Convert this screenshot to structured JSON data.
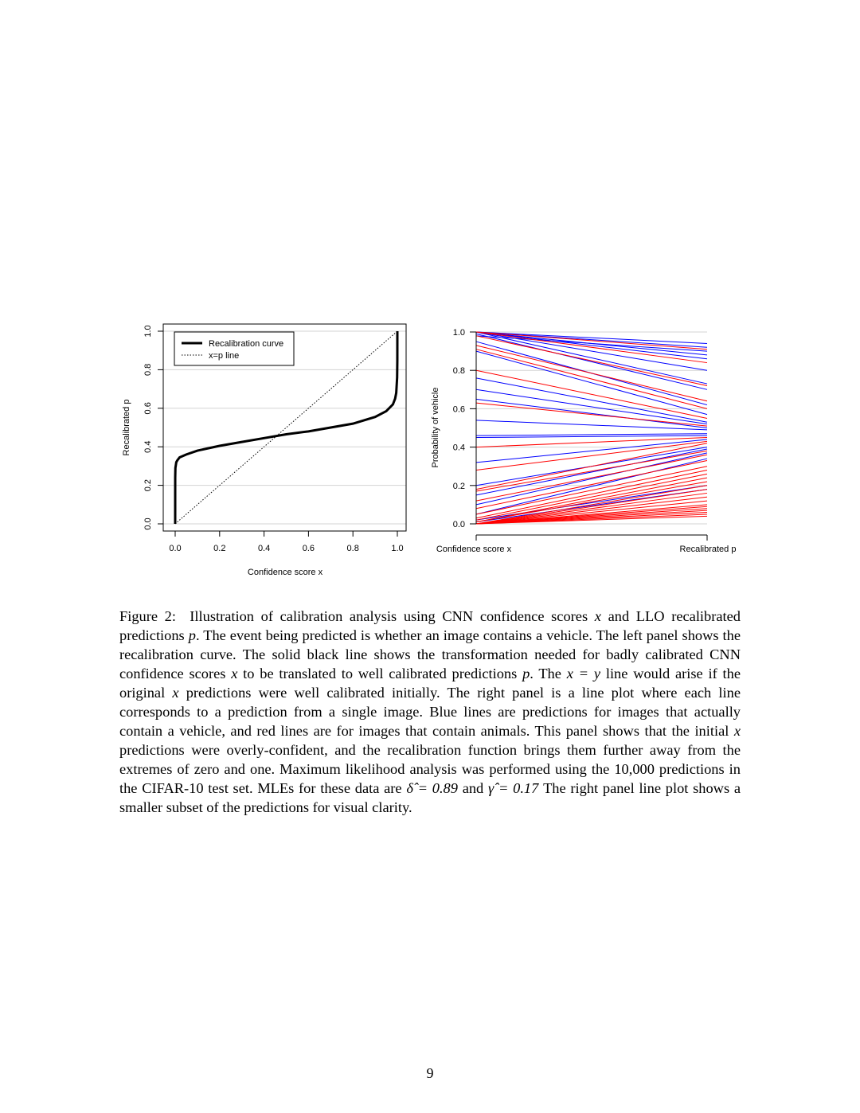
{
  "chart_data": [
    {
      "type": "line",
      "title": "",
      "xlabel": "Confidence score x",
      "ylabel": "Recalibrated p",
      "xlim": [
        0,
        1
      ],
      "ylim": [
        0,
        1
      ],
      "xticks": [
        "0.0",
        "0.2",
        "0.4",
        "0.6",
        "0.8",
        "1.0"
      ],
      "yticks": [
        "0.0",
        "0.2",
        "0.4",
        "0.6",
        "0.8",
        "1.0"
      ],
      "grid": "horizontal",
      "legend": {
        "placement": "top-left",
        "entries": [
          "Recalibration curve",
          "x=p line"
        ]
      },
      "series": [
        {
          "name": "Recalibration curve",
          "style": "solid-thick-black",
          "x": [
            0.0,
            0.0001,
            0.001,
            0.005,
            0.01,
            0.02,
            0.05,
            0.1,
            0.2,
            0.3,
            0.4,
            0.5,
            0.6,
            0.7,
            0.8,
            0.9,
            0.95,
            0.98,
            0.99,
            0.995,
            0.999,
            0.9999,
            1.0
          ],
          "y": [
            0.0,
            0.24,
            0.29,
            0.32,
            0.33,
            0.345,
            0.36,
            0.38,
            0.405,
            0.425,
            0.445,
            0.465,
            0.48,
            0.5,
            0.52,
            0.555,
            0.585,
            0.62,
            0.65,
            0.68,
            0.76,
            0.85,
            1.0
          ]
        },
        {
          "name": "x=p line",
          "style": "dotted-black",
          "x": [
            0,
            1
          ],
          "y": [
            0,
            1
          ]
        }
      ]
    },
    {
      "type": "line",
      "title": "",
      "xlabel": "",
      "ylabel": "Probability of vehicle",
      "x_categories": [
        "Confidence score x",
        "Recalibrated p"
      ],
      "ylim": [
        0,
        1
      ],
      "yticks": [
        "0.0",
        "0.2",
        "0.4",
        "0.6",
        "0.8",
        "1.0"
      ],
      "grid": "horizontal",
      "colors": {
        "vehicle": "#0000ff",
        "animal": "#ff0000"
      },
      "series": [
        {
          "name": "",
          "color": "#0000ff",
          "values": [
            1.0,
            0.94
          ]
        },
        {
          "name": "",
          "color": "#0000ff",
          "values": [
            1.0,
            0.92
          ]
        },
        {
          "name": "",
          "color": "#0000ff",
          "values": [
            1.0,
            0.88
          ]
        },
        {
          "name": "",
          "color": "#0000ff",
          "values": [
            1.0,
            0.86
          ]
        },
        {
          "name": "",
          "color": "#0000ff",
          "values": [
            1.0,
            0.8
          ]
        },
        {
          "name": "",
          "color": "#0000ff",
          "values": [
            1.0,
            0.73
          ]
        },
        {
          "name": "",
          "color": "#0000ff",
          "values": [
            0.99,
            0.7
          ]
        },
        {
          "name": "",
          "color": "#0000ff",
          "values": [
            0.98,
            0.9
          ]
        },
        {
          "name": "",
          "color": "#0000ff",
          "values": [
            0.95,
            0.62
          ]
        },
        {
          "name": "",
          "color": "#0000ff",
          "values": [
            0.9,
            0.57
          ]
        },
        {
          "name": "",
          "color": "#0000ff",
          "values": [
            0.76,
            0.53
          ]
        },
        {
          "name": "",
          "color": "#0000ff",
          "values": [
            0.7,
            0.52
          ]
        },
        {
          "name": "",
          "color": "#0000ff",
          "values": [
            0.65,
            0.5
          ]
        },
        {
          "name": "",
          "color": "#0000ff",
          "values": [
            0.54,
            0.49
          ]
        },
        {
          "name": "",
          "color": "#0000ff",
          "values": [
            0.46,
            0.47
          ]
        },
        {
          "name": "",
          "color": "#0000ff",
          "values": [
            0.45,
            0.46
          ]
        },
        {
          "name": "",
          "color": "#0000ff",
          "values": [
            0.32,
            0.44
          ]
        },
        {
          "name": "",
          "color": "#0000ff",
          "values": [
            0.2,
            0.4
          ]
        },
        {
          "name": "",
          "color": "#0000ff",
          "values": [
            0.15,
            0.39
          ]
        },
        {
          "name": "",
          "color": "#0000ff",
          "values": [
            0.1,
            0.37
          ]
        },
        {
          "name": "",
          "color": "#0000ff",
          "values": [
            0.05,
            0.34
          ]
        },
        {
          "name": "",
          "color": "#0000ff",
          "values": [
            0.02,
            0.2
          ]
        },
        {
          "name": "",
          "color": "#0000ff",
          "values": [
            0.01,
            0.18
          ]
        },
        {
          "name": "",
          "color": "#ff0000",
          "values": [
            1.0,
            0.91
          ]
        },
        {
          "name": "",
          "color": "#ff0000",
          "values": [
            1.0,
            0.84
          ]
        },
        {
          "name": "",
          "color": "#ff0000",
          "values": [
            0.98,
            0.72
          ]
        },
        {
          "name": "",
          "color": "#ff0000",
          "values": [
            0.93,
            0.64
          ]
        },
        {
          "name": "",
          "color": "#ff0000",
          "values": [
            0.91,
            0.6
          ]
        },
        {
          "name": "",
          "color": "#ff0000",
          "values": [
            0.8,
            0.55
          ]
        },
        {
          "name": "",
          "color": "#ff0000",
          "values": [
            0.63,
            0.51
          ]
        },
        {
          "name": "",
          "color": "#ff0000",
          "values": [
            0.4,
            0.45
          ]
        },
        {
          "name": "",
          "color": "#ff0000",
          "values": [
            0.28,
            0.43
          ]
        },
        {
          "name": "",
          "color": "#ff0000",
          "values": [
            0.18,
            0.42
          ]
        },
        {
          "name": "",
          "color": "#ff0000",
          "values": [
            0.17,
            0.38
          ]
        },
        {
          "name": "",
          "color": "#ff0000",
          "values": [
            0.12,
            0.36
          ]
        },
        {
          "name": "",
          "color": "#ff0000",
          "values": [
            0.08,
            0.33
          ]
        },
        {
          "name": "",
          "color": "#ff0000",
          "values": [
            0.05,
            0.3
          ]
        },
        {
          "name": "",
          "color": "#ff0000",
          "values": [
            0.03,
            0.28
          ]
        },
        {
          "name": "",
          "color": "#ff0000",
          "values": [
            0.02,
            0.26
          ]
        },
        {
          "name": "",
          "color": "#ff0000",
          "values": [
            0.01,
            0.24
          ]
        },
        {
          "name": "",
          "color": "#ff0000",
          "values": [
            0.01,
            0.22
          ]
        },
        {
          "name": "",
          "color": "#ff0000",
          "values": [
            0.0,
            0.2
          ]
        },
        {
          "name": "",
          "color": "#ff0000",
          "values": [
            0.0,
            0.18
          ]
        },
        {
          "name": "",
          "color": "#ff0000",
          "values": [
            0.0,
            0.16
          ]
        },
        {
          "name": "",
          "color": "#ff0000",
          "values": [
            0.0,
            0.14
          ]
        },
        {
          "name": "",
          "color": "#ff0000",
          "values": [
            0.0,
            0.12
          ]
        },
        {
          "name": "",
          "color": "#ff0000",
          "values": [
            0.0,
            0.1
          ]
        },
        {
          "name": "",
          "color": "#ff0000",
          "values": [
            0.0,
            0.09
          ]
        },
        {
          "name": "",
          "color": "#ff0000",
          "values": [
            0.0,
            0.08
          ]
        },
        {
          "name": "",
          "color": "#ff0000",
          "values": [
            0.0,
            0.07
          ]
        },
        {
          "name": "",
          "color": "#ff0000",
          "values": [
            0.0,
            0.06
          ]
        },
        {
          "name": "",
          "color": "#ff0000",
          "values": [
            0.0,
            0.05
          ]
        },
        {
          "name": "",
          "color": "#ff0000",
          "values": [
            0.0,
            0.04
          ]
        }
      ]
    }
  ],
  "caption": {
    "label": "Figure 2:",
    "parts": [
      "Illustration of calibration analysis using CNN confidence scores ",
      "x",
      " and LLO recalibrated predictions ",
      "p",
      ". The event being predicted is whether an image contains a vehicle. The left panel shows the recalibration curve. The solid black line shows the transformation needed for badly calibrated CNN confidence scores ",
      "x",
      " to be translated to well calibrated predictions ",
      "p",
      ". The ",
      "x = y",
      " line would arise if the original ",
      "x",
      " predictions were well calibrated initially. The right panel is a line plot where each line corresponds to a prediction from a single image. Blue lines are predictions for images that actually contain a vehicle, and red lines are for images that contain animals. This panel shows that the initial ",
      "x",
      " predictions were overly-confident, and the recalibration function brings them further away from the extremes of zero and one. Maximum likelihood analysis was performed using the 10,000 predictions in the CIFAR-10 test set. MLEs for these data are ",
      "δ̂ = 0.89",
      " and ",
      "γ̂ = 0.17",
      " The right panel line plot shows a smaller subset of the predictions for visual clarity."
    ]
  },
  "page_number": "9"
}
